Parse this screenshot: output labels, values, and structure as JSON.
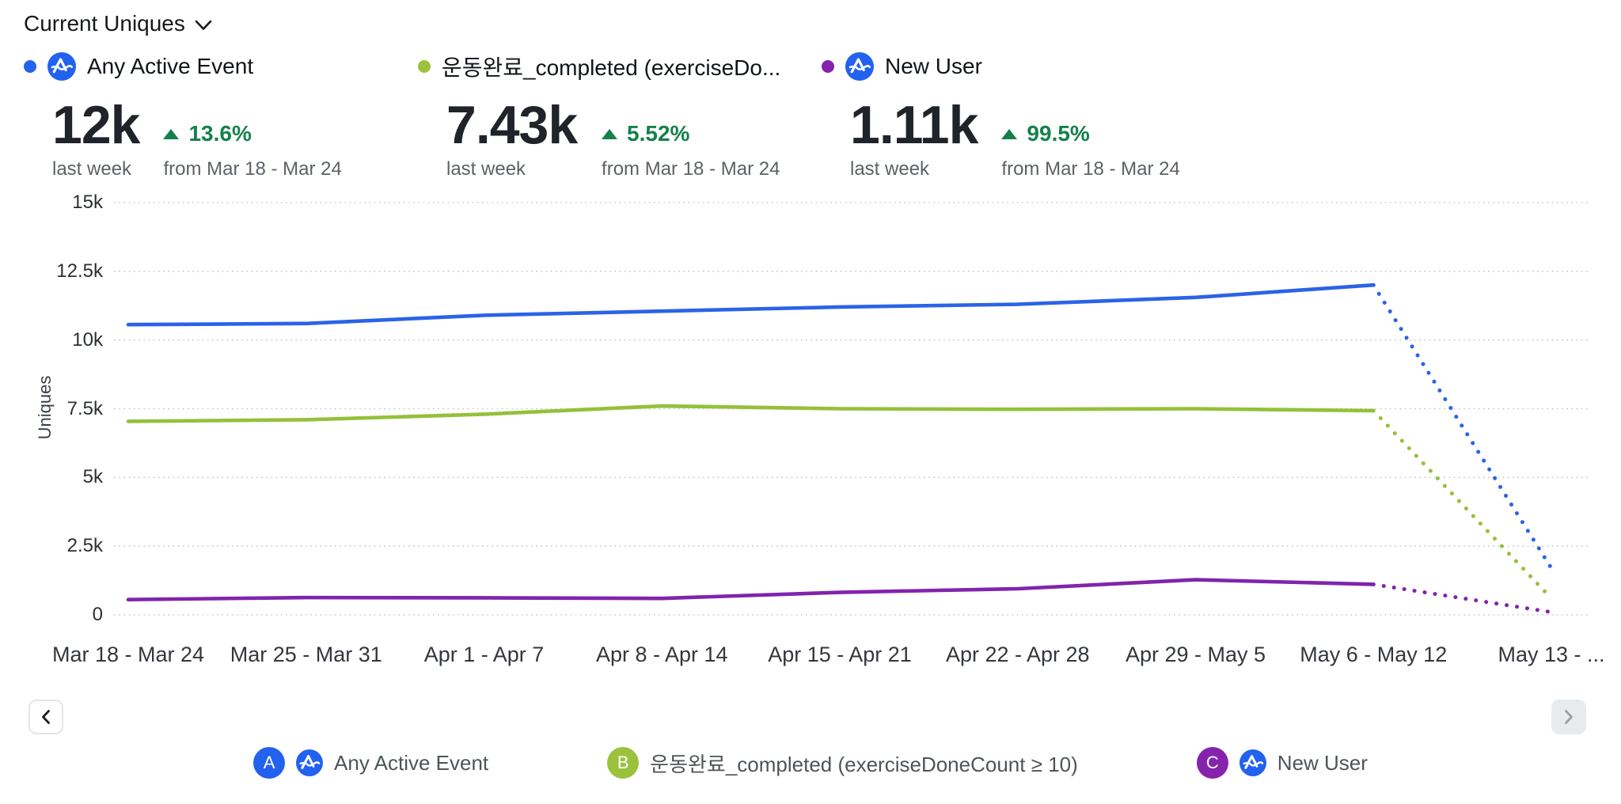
{
  "header": {
    "metric_selector": "Current Uniques"
  },
  "cards": [
    {
      "letter": "A",
      "name": "Any Active Event",
      "value": "12k",
      "period": "last week",
      "delta": "13.6%",
      "delta_direction": "up",
      "compare": "from Mar 18 - Mar 24",
      "color": "#2262ef",
      "has_amplitude_logo": true
    },
    {
      "letter": "B",
      "name": "운동완료_completed (exerciseDo...",
      "value": "7.43k",
      "period": "last week",
      "delta": "5.52%",
      "delta_direction": "up",
      "compare": "from Mar 18 - Mar 24",
      "color": "#9cc23c",
      "has_amplitude_logo": false
    },
    {
      "letter": "C",
      "name": "New User",
      "value": "1.11k",
      "period": "last week",
      "delta": "99.5%",
      "delta_direction": "up",
      "compare": "from Mar 18 - Mar 24",
      "color": "#8523ad",
      "has_amplitude_logo": true
    }
  ],
  "chart_data": {
    "type": "line",
    "title": "Current Uniques",
    "xlabel": "",
    "ylabel": "Uniques",
    "ylim": [
      0,
      15000
    ],
    "yticks": [
      "15k",
      "12.5k",
      "10k",
      "7.5k",
      "5k",
      "2.5k",
      "0"
    ],
    "ytick_values": [
      15000,
      12500,
      10000,
      7500,
      5000,
      2500,
      0
    ],
    "grid": "horizontal-dotted",
    "legend_position": "bottom",
    "categories": [
      "Mar 18 - Mar 24",
      "Mar 25 - Mar 31",
      "Apr 1 - Apr 7",
      "Apr 8 - Apr 14",
      "Apr 15 - Apr 21",
      "Apr 22 - Apr 28",
      "Apr 29 - May 5",
      "May 6 - May 12",
      "May 13 - ..."
    ],
    "partial_last_point_dotted": true,
    "series": [
      {
        "name": "Any Active Event",
        "color": "#2b63e8",
        "values": [
          10560,
          10600,
          10900,
          11050,
          11200,
          11300,
          11550,
          12000,
          1700
        ]
      },
      {
        "name": "운동완료_completed (exerciseDoneCount ≥ 10)",
        "color": "#95c03a",
        "values": [
          7040,
          7100,
          7300,
          7600,
          7500,
          7480,
          7500,
          7430,
          600
        ]
      },
      {
        "name": "New User",
        "color": "#8124ad",
        "values": [
          556,
          630,
          620,
          600,
          820,
          950,
          1280,
          1110,
          100
        ]
      }
    ]
  },
  "nav": {
    "prev_enabled": true,
    "next_enabled": false
  },
  "legend": [
    {
      "letter": "A",
      "label": "Any Active Event",
      "color": "#2262ef",
      "has_amplitude_logo": true
    },
    {
      "letter": "B",
      "label": "운동완료_completed (exerciseDoneCount ≥ 10)",
      "color": "#9cc23c",
      "has_amplitude_logo": false
    },
    {
      "letter": "C",
      "label": "New User",
      "color": "#8523ad",
      "has_amplitude_logo": true
    }
  ],
  "colors": {
    "amplitude_blue": "#2262ef",
    "delta_green": "#15804b",
    "gridline": "#c9cdd2",
    "text_gray": "#5d6166"
  }
}
